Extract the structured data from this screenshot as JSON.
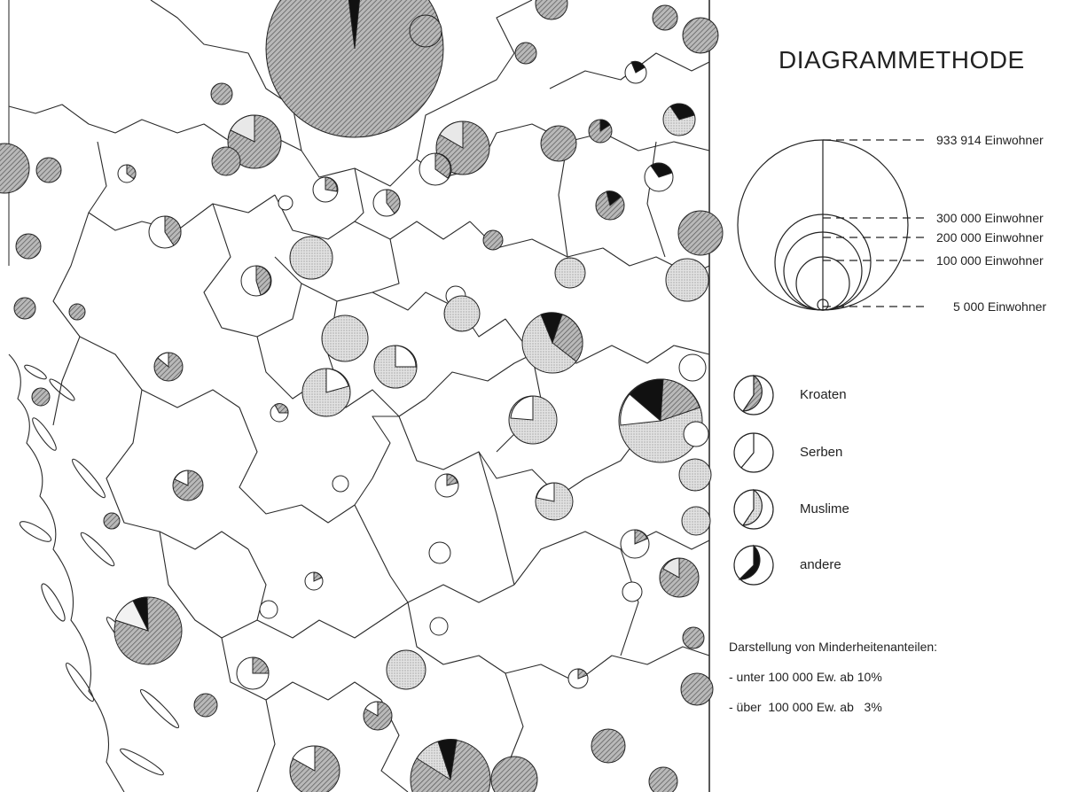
{
  "legend": {
    "title": "DIAGRAMMETHODE",
    "scale": [
      {
        "label": "933 914 Einwohner",
        "population": 933914
      },
      {
        "label": "300 000 Einwohner",
        "population": 300000
      },
      {
        "label": "200 000 Einwohner",
        "population": 200000
      },
      {
        "label": "100 000 Einwohner",
        "population": 100000
      },
      {
        "label": "5 000 Einwohner",
        "population": 5000
      }
    ],
    "groups": [
      {
        "label": "Kroaten",
        "pattern": "hatch"
      },
      {
        "label": "Serben",
        "pattern": "white"
      },
      {
        "label": "Muslime",
        "pattern": "stipple"
      },
      {
        "label": "andere",
        "pattern": "black"
      }
    ],
    "notes": {
      "heading": "Darstellung von Minderheitenanteilen:",
      "line1": "- unter 100 000 Ew. ab 10%",
      "line2": "- über  100 000 Ew. ab   3%"
    }
  },
  "colors": {
    "kroaten": "#8c8c8c",
    "serben": "#ffffff",
    "muslime": "#cfcfcf",
    "andere": "#111111",
    "outline": "#222222"
  }
}
